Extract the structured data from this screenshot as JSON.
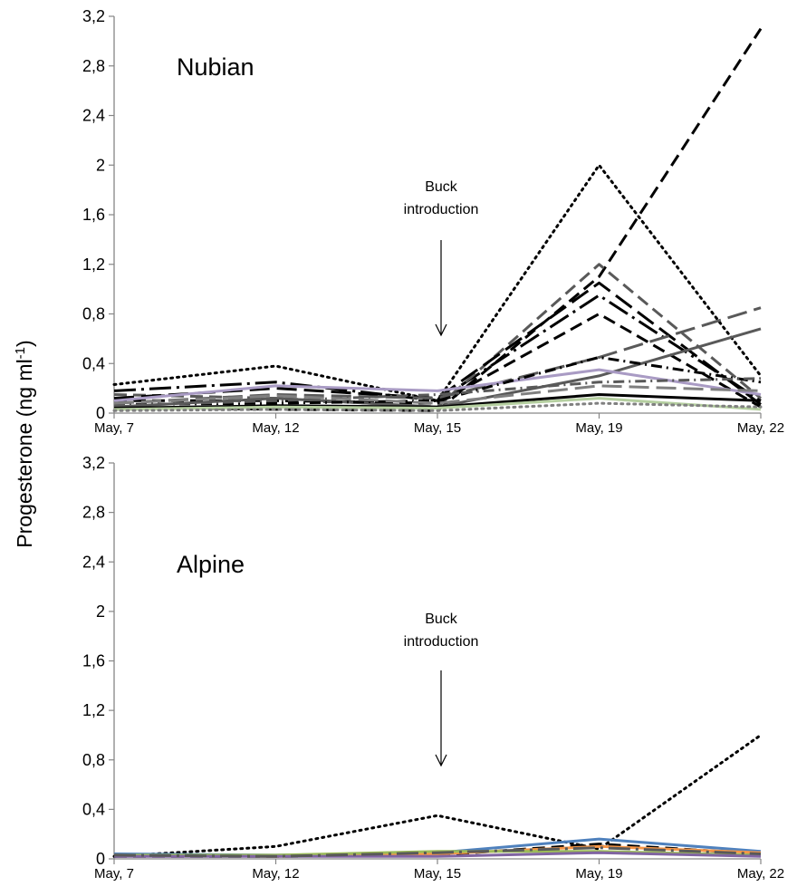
{
  "figure": {
    "ylabel_main": "Progesterone (ng ml",
    "ylabel_sup": "-1",
    "ylabel_close": ")"
  },
  "chart_data": [
    {
      "type": "line",
      "title": "Nubian",
      "categories": [
        "May, 7",
        "May, 12",
        "May, 15",
        "May, 19",
        "May, 22"
      ],
      "yticks": [
        "0",
        "0,4",
        "0,8",
        "1,2",
        "1,6",
        "2",
        "2,4",
        "2,8",
        "3,2"
      ],
      "ylim": [
        0,
        3.2
      ],
      "grid": false,
      "annotation": {
        "line1": "Buck",
        "line2": "introduction",
        "at": "May, 15"
      },
      "series": [
        {
          "values": [
            0.23,
            0.38,
            0.1,
            2.0,
            0.3
          ],
          "color": "#000000",
          "dash": "dot"
        },
        {
          "values": [
            0.05,
            0.03,
            0.02,
            1.1,
            3.1
          ],
          "color": "#000000",
          "dash": "dash"
        },
        {
          "values": [
            0.18,
            0.25,
            0.1,
            0.95,
            0.1
          ],
          "color": "#000000",
          "dash": "longdashdot"
        },
        {
          "values": [
            0.15,
            0.12,
            0.05,
            1.2,
            0.12
          ],
          "color": "#595959",
          "dash": "dash"
        },
        {
          "values": [
            0.12,
            0.2,
            0.12,
            1.05,
            0.07
          ],
          "color": "#000000",
          "dash": "longdash"
        },
        {
          "values": [
            0.1,
            0.1,
            0.08,
            0.8,
            0.05
          ],
          "color": "#000000",
          "dash": "dash"
        },
        {
          "values": [
            0.08,
            0.15,
            0.12,
            0.45,
            0.85
          ],
          "color": "#595959",
          "dash": "longdash"
        },
        {
          "values": [
            0.05,
            0.12,
            0.05,
            0.3,
            0.68
          ],
          "color": "#595959",
          "dash": "solid"
        },
        {
          "values": [
            0.1,
            0.22,
            0.18,
            0.35,
            0.15
          ],
          "color": "#a99bc4",
          "dash": "solid"
        },
        {
          "values": [
            0.07,
            0.08,
            0.1,
            0.45,
            0.25
          ],
          "color": "#000000",
          "dash": "dashdot"
        },
        {
          "values": [
            0.06,
            0.1,
            0.15,
            0.25,
            0.28
          ],
          "color": "#595959",
          "dash": "dashdot"
        },
        {
          "values": [
            0.04,
            0.06,
            0.05,
            0.15,
            0.1
          ],
          "color": "#000000",
          "dash": "solid"
        },
        {
          "values": [
            0.03,
            0.05,
            0.04,
            0.12,
            0.03
          ],
          "color": "#b5cfa0",
          "dash": "solid"
        },
        {
          "values": [
            0.02,
            0.03,
            0.02,
            0.08,
            0.05
          ],
          "color": "#808080",
          "dash": "dot"
        },
        {
          "values": [
            0.08,
            0.14,
            0.08,
            0.22,
            0.18
          ],
          "color": "#7f7f7f",
          "dash": "longdash"
        }
      ]
    },
    {
      "type": "line",
      "title": "Alpine",
      "categories": [
        "May, 7",
        "May, 12",
        "May, 15",
        "May, 19",
        "May, 22"
      ],
      "yticks": [
        "0",
        "0,4",
        "0,8",
        "1,2",
        "1,6",
        "2",
        "2,4",
        "2,8",
        "3,2"
      ],
      "ylim": [
        0,
        3.2
      ],
      "grid": false,
      "annotation": {
        "line1": "Buck",
        "line2": "introduction",
        "at": "May, 15"
      },
      "series": [
        {
          "values": [
            0.02,
            0.1,
            0.35,
            0.08,
            1.0
          ],
          "color": "#000000",
          "dash": "dot"
        },
        {
          "values": [
            0.04,
            0.03,
            0.05,
            0.16,
            0.06
          ],
          "color": "#4f81bd",
          "dash": "solid"
        },
        {
          "values": [
            0.02,
            0.02,
            0.03,
            0.12,
            0.04
          ],
          "color": "#000000",
          "dash": "dash"
        },
        {
          "values": [
            0.03,
            0.02,
            0.04,
            0.1,
            0.05
          ],
          "color": "#f79646",
          "dash": "solid"
        },
        {
          "values": [
            0.03,
            0.03,
            0.06,
            0.06,
            0.03
          ],
          "color": "#9bbb59",
          "dash": "solid"
        },
        {
          "values": [
            0.02,
            0.02,
            0.02,
            0.05,
            0.02
          ],
          "color": "#8064a2",
          "dash": "solid"
        },
        {
          "values": [
            0.03,
            0.02,
            0.05,
            0.09,
            0.04
          ],
          "color": "#595959",
          "dash": "longdashdot"
        }
      ]
    }
  ]
}
